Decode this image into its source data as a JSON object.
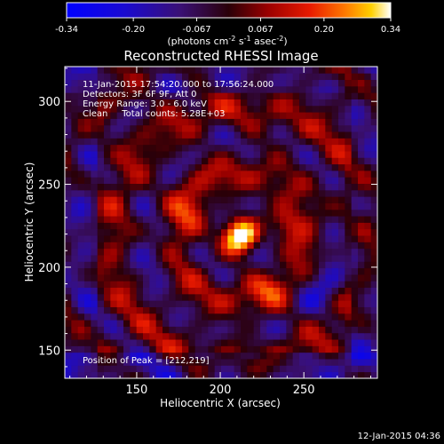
{
  "chart_data": {
    "type": "heatmap",
    "title": "Reconstructed RHESSI Image",
    "xlabel": "Heliocentric X (arcsec)",
    "ylabel": "Heliocentric Y (arcsec)",
    "xlim": [
      107,
      294
    ],
    "ylim": [
      133,
      321
    ],
    "x_ticks": [
      150,
      200,
      250
    ],
    "y_ticks": [
      150,
      200,
      250,
      300
    ],
    "colorbar": {
      "label_main": "(photons cm",
      "sup1": "-2",
      "label_mid": " s",
      "sup2": "-1",
      "label_end": " asec",
      "sup3": "-2",
      "label_close": ")",
      "range": [
        -0.34,
        0.34
      ],
      "ticks": [
        "-0.34",
        "-0.20",
        "-0.067",
        "0.067",
        "0.20",
        "0.34"
      ]
    },
    "annotations": [
      "11-Jan-2015 17:54:20.000 to 17:56:24.000",
      "Detectors: 3F 6F 9F, Att 0",
      "Energy Range: 3.0 - 6.0 keV",
      "Clean     Total counts: 5.28E+03"
    ],
    "peak_label": "Position of Peak = [212,219]",
    "peak": [
      212,
      219
    ],
    "peak_value": 0.34
  },
  "footer_timestamp": "12-Jan-2015 04:36"
}
